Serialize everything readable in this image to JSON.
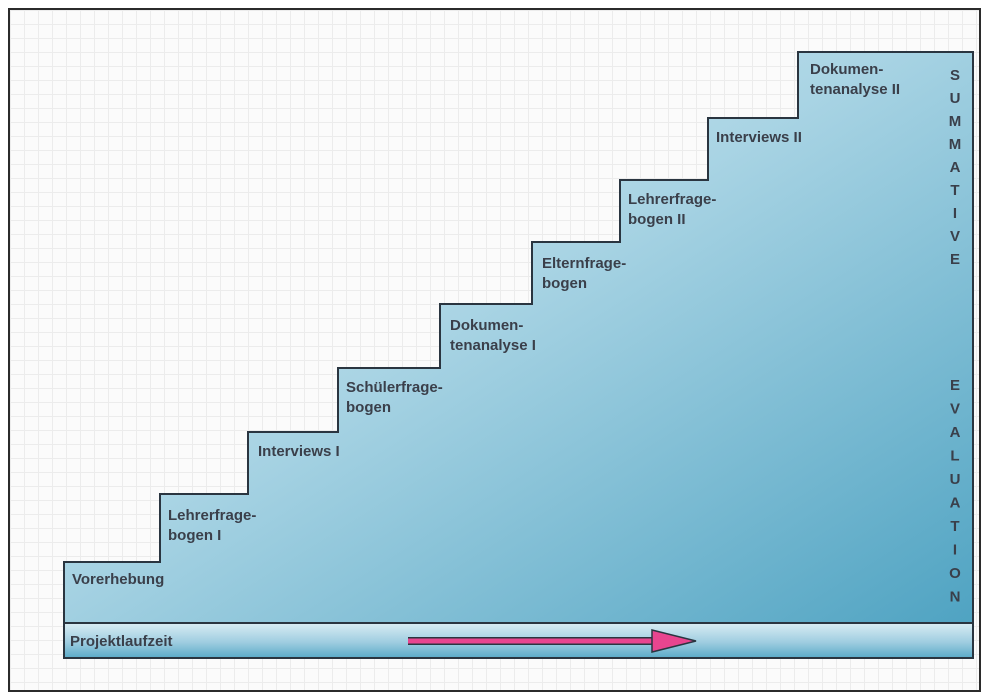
{
  "steps": [
    {
      "lines": [
        "Vorerhebung"
      ]
    },
    {
      "lines": [
        "Lehrerfrage-",
        "bogen I"
      ]
    },
    {
      "lines": [
        "Interviews I"
      ]
    },
    {
      "lines": [
        "Schülerfrage-",
        "bogen"
      ]
    },
    {
      "lines": [
        "Dokumen-",
        "tenanalyse I"
      ]
    },
    {
      "lines": [
        "Elternfrage-",
        "bogen"
      ]
    },
    {
      "lines": [
        "Lehrerfrage-",
        "bogen II"
      ]
    },
    {
      "lines": [
        "Interviews II"
      ]
    },
    {
      "lines": [
        "Dokumen-",
        "tenanalyse II"
      ]
    }
  ],
  "side_label": {
    "word1": "SUMMATIVE",
    "word2": "EVALUATION"
  },
  "timeline": {
    "label": "Projektlaufzeit"
  },
  "colors": {
    "stair_light": "#cfe8f1",
    "stair_dark": "#4ea6c4",
    "outline": "#2a3540",
    "arrow": "#e8458f",
    "text": "#3a3f4a"
  }
}
